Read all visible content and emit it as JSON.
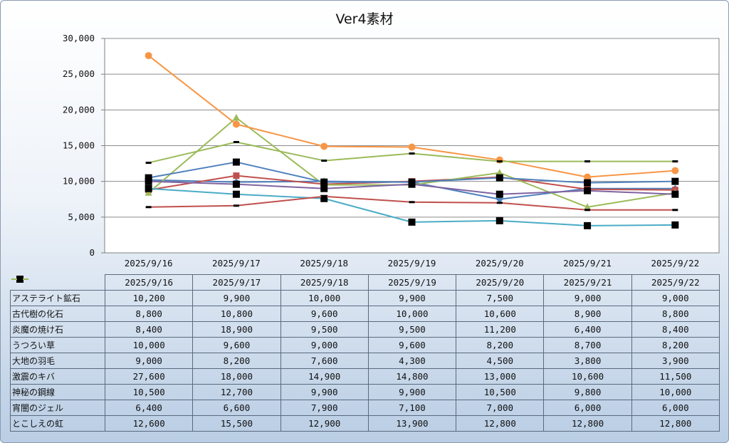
{
  "chart_data": {
    "type": "line",
    "title": "Ver4素材",
    "xlabel": "",
    "ylabel": "",
    "ylim": [
      0,
      30000
    ],
    "yticks": [
      "0",
      "5,000",
      "10,000",
      "15,000",
      "20,000",
      "25,000",
      "30,000"
    ],
    "categories": [
      "2025/9/16",
      "2025/9/17",
      "2025/9/18",
      "2025/9/19",
      "2025/9/20",
      "2025/9/21",
      "2025/9/22"
    ],
    "grid": true,
    "legend": "data-table",
    "series": [
      {
        "name": "アステライト鉱石",
        "color": "#4f81bd",
        "marker": "diamond",
        "values": [
          10200,
          9900,
          10000,
          9900,
          7500,
          9000,
          9000
        ],
        "labels": [
          "10,200",
          "9,900",
          "10,000",
          "9,900",
          "7,500",
          "9,000",
          "9,000"
        ]
      },
      {
        "name": "古代樹の化石",
        "color": "#c0504d",
        "marker": "square",
        "values": [
          8800,
          10800,
          9600,
          10000,
          10600,
          8900,
          8800
        ],
        "labels": [
          "8,800",
          "10,800",
          "9,600",
          "10,000",
          "10,600",
          "8,900",
          "8,800"
        ]
      },
      {
        "name": "炎魔の焼け石",
        "color": "#9bbb59",
        "marker": "triangle",
        "values": [
          8400,
          18900,
          9500,
          9500,
          11200,
          6400,
          8400
        ],
        "labels": [
          "8,400",
          "18,900",
          "9,500",
          "9,500",
          "11,200",
          "6,400",
          "8,400"
        ]
      },
      {
        "name": "うつろい草",
        "color": "#8064a2",
        "marker": "blacksquare",
        "values": [
          10000,
          9600,
          9000,
          9600,
          8200,
          8700,
          8200
        ],
        "labels": [
          "10,000",
          "9,600",
          "9,000",
          "9,600",
          "8,200",
          "8,700",
          "8,200"
        ]
      },
      {
        "name": "大地の羽毛",
        "color": "#4bacc6",
        "marker": "blacksquare",
        "values": [
          9000,
          8200,
          7600,
          4300,
          4500,
          3800,
          3900
        ],
        "labels": [
          "9,000",
          "8,200",
          "7,600",
          "4,300",
          "4,500",
          "3,800",
          "3,900"
        ]
      },
      {
        "name": "激震のキバ",
        "color": "#f79646",
        "marker": "circle",
        "values": [
          27600,
          18000,
          14900,
          14800,
          13000,
          10600,
          11500
        ],
        "labels": [
          "27,600",
          "18,000",
          "14,900",
          "14,800",
          "13,000",
          "10,600",
          "11,500"
        ]
      },
      {
        "name": "神秘の鋼線",
        "color": "#4f81bd",
        "marker": "blacksquare",
        "values": [
          10500,
          12700,
          9900,
          9900,
          10500,
          9800,
          10000
        ],
        "labels": [
          "10,500",
          "12,700",
          "9,900",
          "9,900",
          "10,500",
          "9,800",
          "10,000"
        ]
      },
      {
        "name": "宵闇のジェル",
        "color": "#c0504d",
        "marker": "dash",
        "values": [
          6400,
          6600,
          7900,
          7100,
          7000,
          6000,
          6000
        ],
        "labels": [
          "6,400",
          "6,600",
          "7,900",
          "7,100",
          "7,000",
          "6,000",
          "6,000"
        ]
      },
      {
        "name": "とこしえの虹",
        "color": "#9bbb59",
        "marker": "dash",
        "values": [
          12600,
          15500,
          12900,
          13900,
          12800,
          12800,
          12800
        ],
        "labels": [
          "12,600",
          "15,500",
          "12,900",
          "13,900",
          "12,800",
          "12,800",
          "12,800"
        ]
      }
    ]
  }
}
